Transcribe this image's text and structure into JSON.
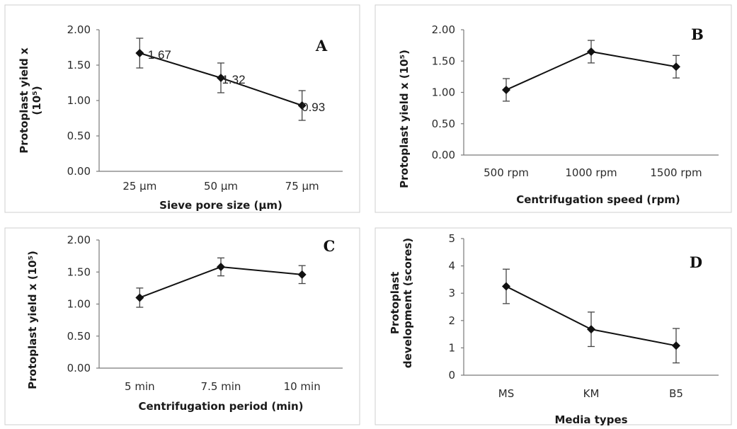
{
  "chart_data": [
    {
      "panel": "A",
      "type": "line",
      "categories": [
        "25 µm",
        "50 µm",
        "75 µm"
      ],
      "values": [
        1.67,
        1.32,
        0.93
      ],
      "errors": [
        0.21,
        0.21,
        0.21
      ],
      "data_labels": [
        "1.67",
        "1.32",
        "0.93"
      ],
      "xlabel": "Sieve pore size (µm)",
      "ylabel": "Protoplast yield x (10⁵)",
      "ylabel_lines": [
        "Protoplast yield x",
        "(10⁵)"
      ],
      "ylim": [
        0,
        2
      ],
      "yticks": [
        "0.00",
        "0.50",
        "1.00",
        "1.50",
        "2.00"
      ],
      "grid": false
    },
    {
      "panel": "B",
      "type": "line",
      "categories": [
        "500 rpm",
        "1000 rpm",
        "1500 rpm"
      ],
      "values": [
        1.04,
        1.65,
        1.41
      ],
      "errors": [
        0.18,
        0.18,
        0.18
      ],
      "xlabel": "Centrifugation speed (rpm)",
      "ylabel": "Protoplast yield x (10⁵)",
      "ylabel_lines": [
        "Protoplast yield x (10⁵)"
      ],
      "ylim": [
        0,
        2
      ],
      "yticks": [
        "0.00",
        "0.50",
        "1.00",
        "1.50",
        "2.00"
      ],
      "grid": false
    },
    {
      "panel": "C",
      "type": "line",
      "categories": [
        "5 min",
        "7.5 min",
        "10 min"
      ],
      "values": [
        1.1,
        1.58,
        1.46
      ],
      "errors": [
        0.15,
        0.14,
        0.14
      ],
      "xlabel": "Centrifugation period (min)",
      "ylabel": "Protoplast yield x (10⁵)",
      "ylabel_lines": [
        "Protoplast yield x (10⁵)"
      ],
      "ylim": [
        0,
        2
      ],
      "yticks": [
        "0.00",
        "0.50",
        "1.00",
        "1.50",
        "2.00"
      ],
      "grid": false
    },
    {
      "panel": "D",
      "type": "line",
      "categories": [
        "MS",
        "KM",
        "B5"
      ],
      "values": [
        3.25,
        1.68,
        1.08
      ],
      "errors": [
        0.63,
        0.63,
        0.63
      ],
      "xlabel": "Media types",
      "ylabel": "Protoplast development (scores)",
      "ylabel_lines": [
        "Protoplast",
        "development (scores)"
      ],
      "ylim": [
        0,
        5
      ],
      "yticks": [
        "0",
        "1",
        "2",
        "3",
        "4",
        "5"
      ],
      "grid": false
    }
  ]
}
